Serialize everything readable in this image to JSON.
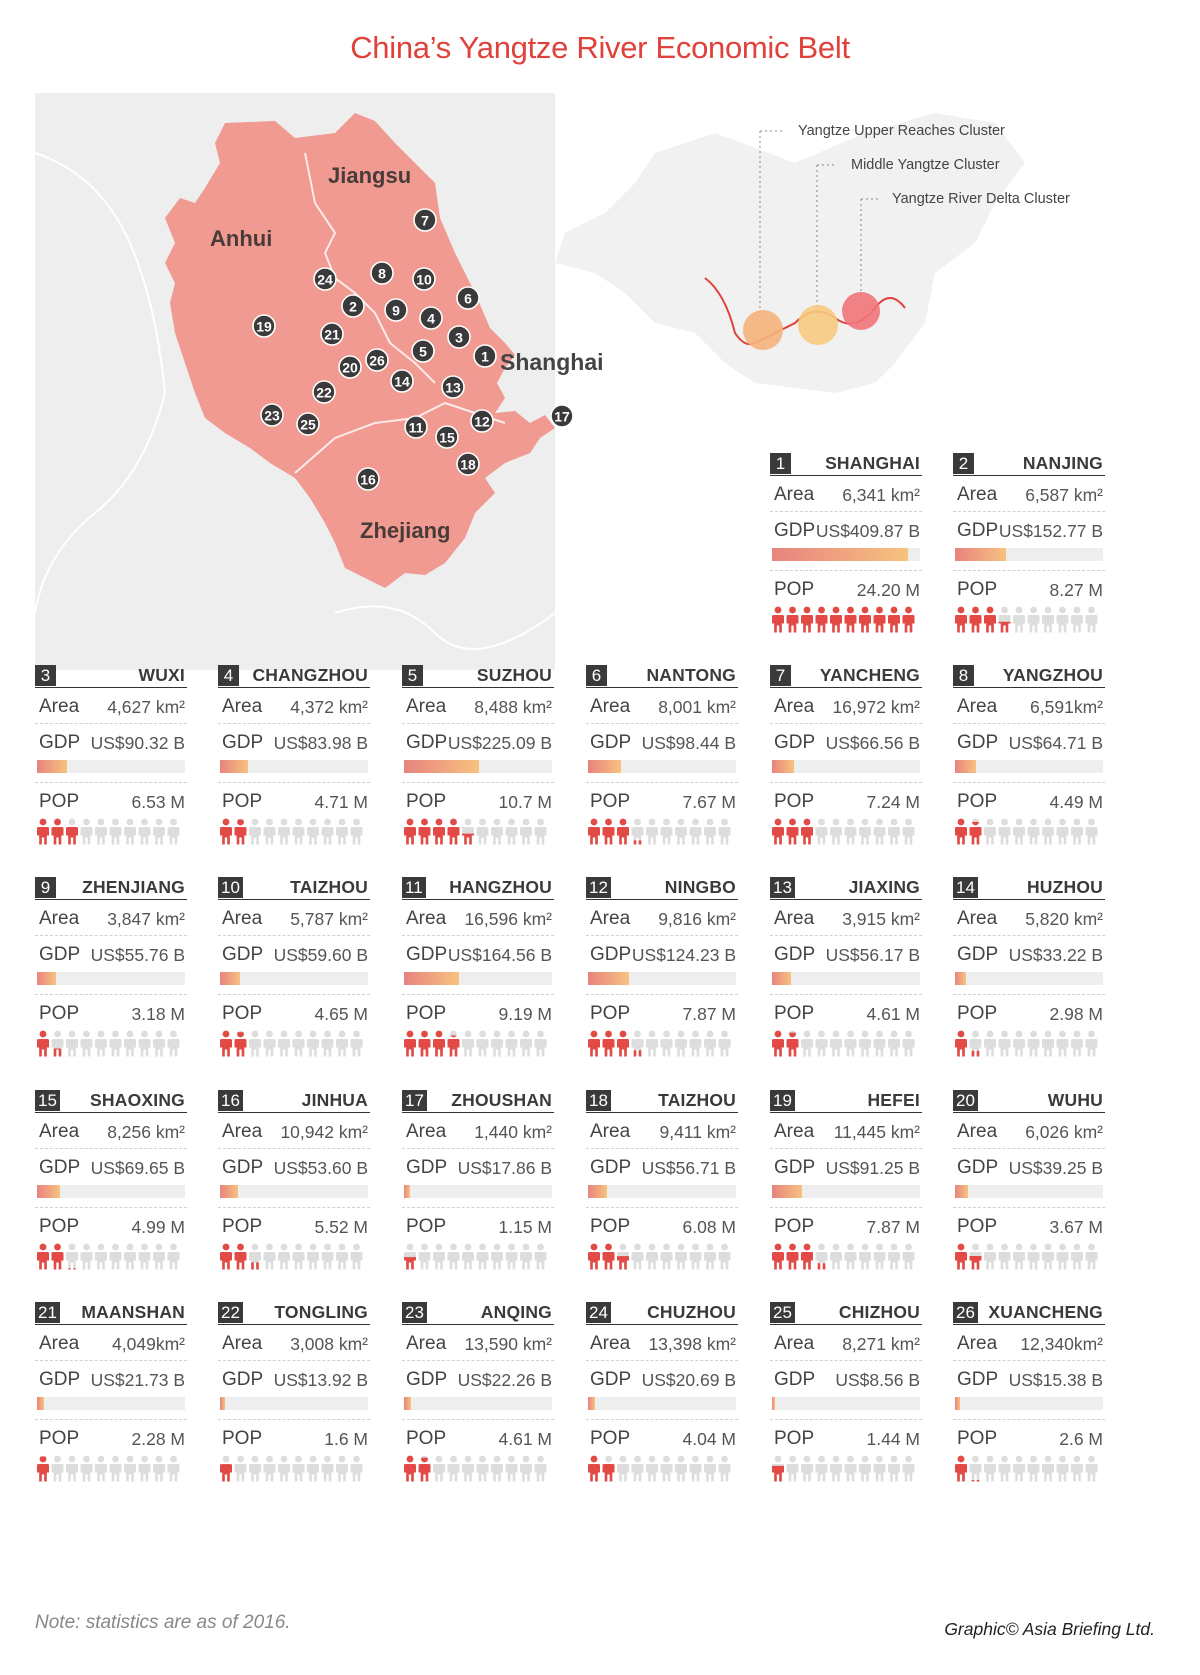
{
  "title": "China’s Yangtze River Economic Belt",
  "map": {
    "provinces": [
      "Jiangsu",
      "Anhui",
      "Zhejiang"
    ],
    "shanghai_label": "Shanghai",
    "clusters": [
      "Yangtze Upper Reaches Cluster",
      "Middle Yangtze Cluster",
      "Yangtze River Delta Cluster"
    ],
    "cluster_colors": [
      "#f5b37c",
      "#f7ca7f",
      "#f0767a"
    ],
    "region_color": "#f09a91",
    "background_color": "#eeeeee",
    "markers": [
      "1",
      "2",
      "3",
      "4",
      "5",
      "6",
      "7",
      "8",
      "9",
      "10",
      "11",
      "12",
      "13",
      "14",
      "15",
      "16",
      "17",
      "18",
      "19",
      "20",
      "21",
      "22",
      "23",
      "24",
      "25",
      "26"
    ]
  },
  "labels": {
    "area": "Area",
    "gdp": "GDP",
    "pop": "POP"
  },
  "cities": [
    {
      "num": "1",
      "name": "SHANGHAI",
      "area": "6,341 km²",
      "gdp": "US$409.87 B",
      "gdp_value": 409.87,
      "pop": "24.20 M",
      "pop_value": 24.2
    },
    {
      "num": "2",
      "name": "NANJING",
      "area": "6,587 km²",
      "gdp": "US$152.77 B",
      "gdp_value": 152.77,
      "pop": "8.27 M",
      "pop_value": 8.27
    },
    {
      "num": "3",
      "name": "WUXI",
      "area": "4,627 km²",
      "gdp": "US$90.32 B",
      "gdp_value": 90.32,
      "pop": "6.53 M",
      "pop_value": 6.53
    },
    {
      "num": "4",
      "name": "CHANGZHOU",
      "area": "4,372 km²",
      "gdp": "US$83.98 B",
      "gdp_value": 83.98,
      "pop": "4.71 M",
      "pop_value": 4.71
    },
    {
      "num": "5",
      "name": "SUZHOU",
      "area": "8,488 km²",
      "gdp": "US$225.09 B",
      "gdp_value": 225.09,
      "pop": "10.7 M",
      "pop_value": 10.7
    },
    {
      "num": "6",
      "name": "NANTONG",
      "area": "8,001 km²",
      "gdp": "US$98.44 B",
      "gdp_value": 98.44,
      "pop": "7.67 M",
      "pop_value": 7.67
    },
    {
      "num": "7",
      "name": "YANCHENG",
      "area": "16,972 km²",
      "gdp": "US$66.56 B",
      "gdp_value": 66.56,
      "pop": "7.24 M",
      "pop_value": 7.24
    },
    {
      "num": "8",
      "name": "YANGZHOU",
      "area": "6,591km²",
      "gdp": "US$64.71 B",
      "gdp_value": 64.71,
      "pop": "4.49 M",
      "pop_value": 4.49
    },
    {
      "num": "9",
      "name": "ZHENJIANG",
      "area": "3,847 km²",
      "gdp": "US$55.76 B",
      "gdp_value": 55.76,
      "pop": "3.18 M",
      "pop_value": 3.18
    },
    {
      "num": "10",
      "name": "TAIZHOU",
      "area": "5,787 km²",
      "gdp": "US$59.60 B",
      "gdp_value": 59.6,
      "pop": "4.65 M",
      "pop_value": 4.65
    },
    {
      "num": "11",
      "name": "HANGZHOU",
      "area": "16,596 km²",
      "gdp": "US$164.56 B",
      "gdp_value": 164.56,
      "pop": "9.19 M",
      "pop_value": 9.19
    },
    {
      "num": "12",
      "name": "NINGBO",
      "area": "9,816 km²",
      "gdp": "US$124.23 B",
      "gdp_value": 124.23,
      "pop": "7.87 M",
      "pop_value": 7.87
    },
    {
      "num": "13",
      "name": "JIAXING",
      "area": "3,915 km²",
      "gdp": "US$56.17 B",
      "gdp_value": 56.17,
      "pop": "4.61 M",
      "pop_value": 4.61
    },
    {
      "num": "14",
      "name": "HUZHOU",
      "area": "5,820 km²",
      "gdp": "US$33.22 B",
      "gdp_value": 33.22,
      "pop": "2.98 M",
      "pop_value": 2.98
    },
    {
      "num": "15",
      "name": "SHAOXING",
      "area": "8,256 km²",
      "gdp": "US$69.65 B",
      "gdp_value": 69.65,
      "pop": "4.99 M",
      "pop_value": 4.99
    },
    {
      "num": "16",
      "name": "JINHUA",
      "area": "10,942 km²",
      "gdp": "US$53.60 B",
      "gdp_value": 53.6,
      "pop": "5.52 M",
      "pop_value": 5.52
    },
    {
      "num": "17",
      "name": "ZHOUSHAN",
      "area": "1,440 km²",
      "gdp": "US$17.86 B",
      "gdp_value": 17.86,
      "pop": "1.15 M",
      "pop_value": 1.15
    },
    {
      "num": "18",
      "name": "TAIZHOU",
      "area": "9,411 km²",
      "gdp": "US$56.71 B",
      "gdp_value": 56.71,
      "pop": "6.08 M",
      "pop_value": 6.08
    },
    {
      "num": "19",
      "name": "HEFEI",
      "area": "11,445 km²",
      "gdp": "US$91.25 B",
      "gdp_value": 91.25,
      "pop": "7.87 M",
      "pop_value": 7.87
    },
    {
      "num": "20",
      "name": "WUHU",
      "area": "6,026 km²",
      "gdp": "US$39.25 B",
      "gdp_value": 39.25,
      "pop": "3.67 M",
      "pop_value": 3.67
    },
    {
      "num": "21",
      "name": "MAANSHAN",
      "area": "4,049km²",
      "gdp": "US$21.73 B",
      "gdp_value": 21.73,
      "pop": "2.28 M",
      "pop_value": 2.28
    },
    {
      "num": "22",
      "name": "TONGLING",
      "area": "3,008 km²",
      "gdp": "US$13.92 B",
      "gdp_value": 13.92,
      "pop": "1.6 M",
      "pop_value": 1.6
    },
    {
      "num": "23",
      "name": "ANQING",
      "area": "13,590 km²",
      "gdp": "US$22.26 B",
      "gdp_value": 22.26,
      "pop": "4.61 M",
      "pop_value": 4.61
    },
    {
      "num": "24",
      "name": "CHUZHOU",
      "area": "13,398 km²",
      "gdp": "US$20.69 B",
      "gdp_value": 20.69,
      "pop": "4.04 M",
      "pop_value": 4.04
    },
    {
      "num": "25",
      "name": "CHIZHOU",
      "area": "8,271 km²",
      "gdp": "US$8.56 B",
      "gdp_value": 8.56,
      "pop": "1.44 M",
      "pop_value": 1.44
    },
    {
      "num": "26",
      "name": "XUANCHENG",
      "area": "12,340km²",
      "gdp": "US$15.38 B",
      "gdp_value": 15.38,
      "pop": "2.6 M",
      "pop_value": 2.6
    }
  ],
  "people_colors": {
    "filled": "#e34a45",
    "empty": "#dddddd"
  },
  "note": "Note: statistics are as of 2016.",
  "credit": "Graphic© Asia Briefing Ltd."
}
